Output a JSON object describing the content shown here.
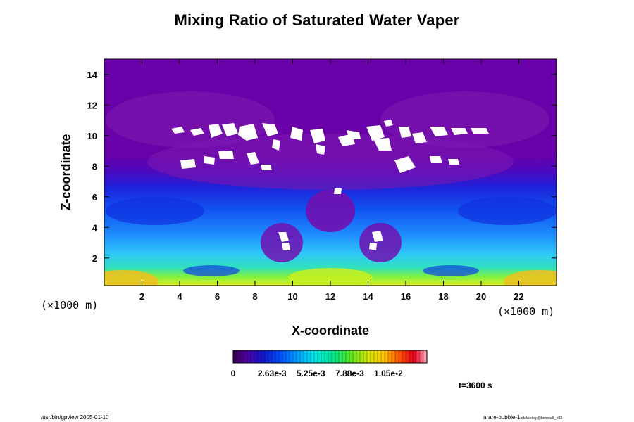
{
  "chart_data": {
    "type": "heatmap",
    "title": "Mixing Ratio of Saturated Water Vaper",
    "xlabel": "X-coordinate",
    "ylabel": "Z-coordinate",
    "x_unit": "(×1000 m)",
    "y_unit": "(×1000 m)",
    "xlim": [
      0,
      24
    ],
    "ylim": [
      0.2,
      15
    ],
    "x_ticks": [
      2,
      4,
      6,
      8,
      10,
      12,
      14,
      16,
      18,
      20,
      22
    ],
    "y_ticks": [
      2,
      4,
      6,
      8,
      10,
      12,
      14
    ],
    "colorbar": {
      "ticks": [
        "0",
        "2.63e-3",
        "5.25e-3",
        "7.88e-3",
        "1.05e-2"
      ],
      "vmin": 0,
      "vmax": 0.0131
    },
    "grid": false
  },
  "annotations": {
    "time": "t=3600 s",
    "footer_left": "/usr/bin/gpview 2005-01-10",
    "footer_right_main": "arare-bubble-1",
    "footer_right_small": "odakker.ep@bernoulli_ri93"
  }
}
